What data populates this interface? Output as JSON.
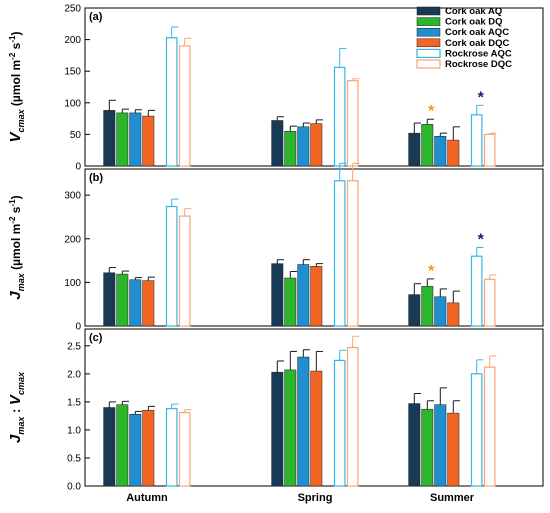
{
  "colors": {
    "cork_aq": "#173a57",
    "cork_dq": "#2db52d",
    "cork_aqc": "#1f8fd0",
    "cork_dqc": "#f26522",
    "rockrose_aqc": "#37b5ea",
    "rockrose_dqc": "#f7a673",
    "asterisk_orange": "#f7941d",
    "asterisk_navy": "#1a1a7a"
  },
  "chart_data": {
    "type": "bar",
    "categories": [
      "Autumn",
      "Spring",
      "Summer"
    ],
    "legend": {
      "placement": "top-right",
      "entries": [
        {
          "label": "Cork oak AQ",
          "color": "#173a57",
          "style": "filled"
        },
        {
          "label": "Cork oak DQ",
          "color": "#2db52d",
          "style": "filled"
        },
        {
          "label": "Cork oak AQC",
          "color": "#1f8fd0",
          "style": "filled"
        },
        {
          "label": "Cork oak DQC",
          "color": "#f26522",
          "style": "filled"
        },
        {
          "label": "Rockrose AQC",
          "color": "#37b5ea",
          "style": "open"
        },
        {
          "label": "Rockrose DQC",
          "color": "#f7a673",
          "style": "open"
        }
      ]
    },
    "panels": [
      {
        "panel_label": "(a)",
        "ylabel_main": "V",
        "ylabel_sub": "cmax",
        "ylabel_units": "(µmol m",
        "ylabel_units_tail": " s",
        "ylabel_close": ")",
        "ylim": [
          0,
          250
        ],
        "yticks": [
          "0",
          "50",
          "100",
          "150",
          "200",
          "250"
        ],
        "series": [
          {
            "name": "Cork oak AQ",
            "values": [
              88,
              72,
              52
            ],
            "errors": [
              16,
              6,
              16
            ]
          },
          {
            "name": "Cork oak DQ",
            "values": [
              84,
              55,
              66
            ],
            "errors": [
              6,
              8,
              8
            ]
          },
          {
            "name": "Cork oak AQC",
            "values": [
              84,
              62,
              47
            ],
            "errors": [
              5,
              6,
              5
            ]
          },
          {
            "name": "Cork oak DQC",
            "values": [
              79,
              67,
              41
            ],
            "errors": [
              9,
              6,
              21
            ]
          },
          {
            "name": "Rockrose AQC",
            "values": [
              203,
              156,
              81
            ],
            "errors": [
              17,
              30,
              15
            ]
          },
          {
            "name": "Rockrose DQC",
            "values": [
              190,
              135,
              50
            ],
            "errors": [
              12,
              3,
              2
            ]
          }
        ],
        "significance": [
          {
            "category": "Summer",
            "series": "Cork oak DQ",
            "mark": "*",
            "color": "#f7941d"
          },
          {
            "category": "Summer",
            "series": "Rockrose AQC",
            "mark": "*",
            "color": "#1a1a7a"
          }
        ]
      },
      {
        "panel_label": "(b)",
        "ylabel_main": "J",
        "ylabel_sub": "max",
        "ylabel_units": "(µmol m",
        "ylabel_units_tail": " s",
        "ylabel_close": ")",
        "ylim": [
          0,
          360
        ],
        "yticks": [
          "0",
          "100",
          "200",
          "300"
        ],
        "series": [
          {
            "name": "Cork oak AQ",
            "values": [
              122,
              143,
              72
            ],
            "errors": [
              12,
              9,
              25
            ]
          },
          {
            "name": "Cork oak DQ",
            "values": [
              119,
              110,
              91
            ],
            "errors": [
              7,
              15,
              17
            ]
          },
          {
            "name": "Cork oak AQC",
            "values": [
              106,
              141,
              67
            ],
            "errors": [
              5,
              11,
              18
            ]
          },
          {
            "name": "Cork oak DQC",
            "values": [
              104,
              137,
              53
            ],
            "errors": [
              8,
              6,
              27
            ]
          },
          {
            "name": "Rockrose AQC",
            "values": [
              274,
              333,
              160
            ],
            "errors": [
              17,
              40,
              20
            ]
          },
          {
            "name": "Rockrose DQC",
            "values": [
              252,
              333,
              107
            ],
            "errors": [
              17,
              40,
              10
            ]
          }
        ],
        "significance": [
          {
            "category": "Summer",
            "series": "Cork oak DQ",
            "mark": "*",
            "color": "#f7941d"
          },
          {
            "category": "Summer",
            "series": "Rockrose AQC",
            "mark": "*",
            "color": "#1a1a7a"
          }
        ]
      },
      {
        "panel_label": "(c)",
        "ylabel_main": "J",
        "ylabel_sub": "max",
        "ylabel_sep": " : ",
        "ylabel_main2": "V",
        "ylabel_sub2": "cmax",
        "ylim": [
          0,
          2.8
        ],
        "yticks": [
          "0.0",
          "0.5",
          "1.0",
          "1.5",
          "2.0",
          "2.5"
        ],
        "series": [
          {
            "name": "Cork oak AQ",
            "values": [
              1.4,
              2.03,
              1.47
            ],
            "errors": [
              0.1,
              0.2,
              0.18
            ]
          },
          {
            "name": "Cork oak DQ",
            "values": [
              1.45,
              2.07,
              1.37
            ],
            "errors": [
              0.06,
              0.33,
              0.15
            ]
          },
          {
            "name": "Cork oak AQC",
            "values": [
              1.28,
              2.3,
              1.45
            ],
            "errors": [
              0.05,
              0.13,
              0.3
            ]
          },
          {
            "name": "Cork oak DQC",
            "values": [
              1.35,
              2.05,
              1.3
            ],
            "errors": [
              0.07,
              0.35,
              0.22
            ]
          },
          {
            "name": "Rockrose AQC",
            "values": [
              1.38,
              2.24,
              2.0
            ],
            "errors": [
              0.08,
              0.18,
              0.25
            ]
          },
          {
            "name": "Rockrose DQC",
            "values": [
              1.31,
              2.47,
              2.12
            ],
            "errors": [
              0.05,
              0.2,
              0.2
            ]
          }
        ],
        "significance": []
      }
    ]
  }
}
